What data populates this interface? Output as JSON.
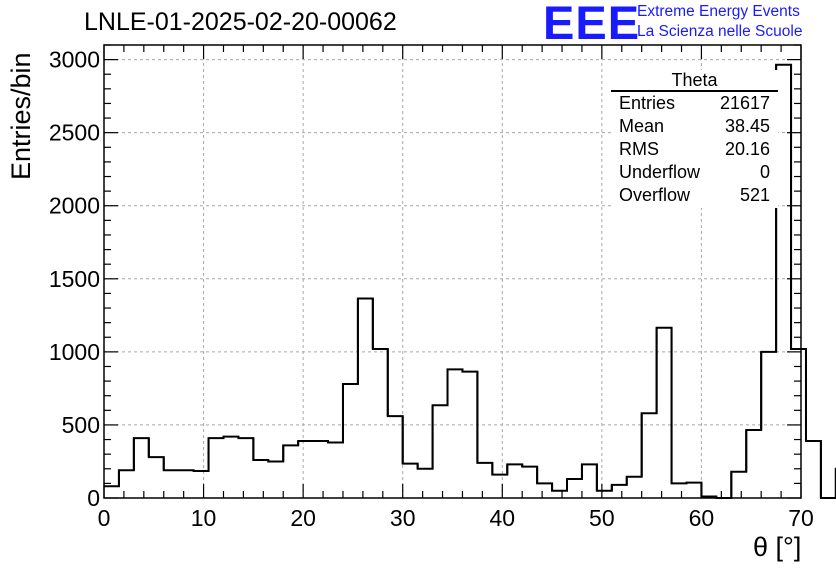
{
  "title": "LNLE-01-2025-02-20-00062",
  "logo": {
    "text": "EEE",
    "line1": "Extreme Energy Events",
    "line2": "La Scienza nelle Scuole",
    "color": "#1a1aff"
  },
  "stats": {
    "name": "Theta",
    "rows": [
      {
        "label": "Entries",
        "value": "21617"
      },
      {
        "label": "Mean",
        "value": "38.45"
      },
      {
        "label": "RMS",
        "value": "20.16"
      },
      {
        "label": "Underflow",
        "value": "0"
      },
      {
        "label": "Overflow",
        "value": "521"
      }
    ]
  },
  "chart_data": {
    "type": "bar",
    "title": "LNLE-01-2025-02-20-00062",
    "xlabel": "θ [°]",
    "ylabel": "Entries/bin",
    "xlim": [
      0,
      70
    ],
    "ylim": [
      0,
      3100
    ],
    "grid": true,
    "bin_width": 1.5,
    "x_start": 0,
    "values": [
      80,
      190,
      410,
      280,
      190,
      190,
      185,
      410,
      420,
      410,
      260,
      250,
      360,
      390,
      390,
      380,
      780,
      1365,
      1020,
      560,
      235,
      200,
      635,
      880,
      865,
      240,
      160,
      230,
      215,
      100,
      50,
      130,
      230,
      50,
      90,
      145,
      580,
      1165,
      100,
      105,
      10,
      0,
      180,
      465,
      1000,
      2965,
      1020,
      390,
      0,
      200
    ],
    "x_ticks": [
      0,
      10,
      20,
      30,
      40,
      50,
      60,
      70
    ],
    "y_ticks": [
      0,
      500,
      1000,
      1500,
      2000,
      2500,
      3000
    ]
  }
}
